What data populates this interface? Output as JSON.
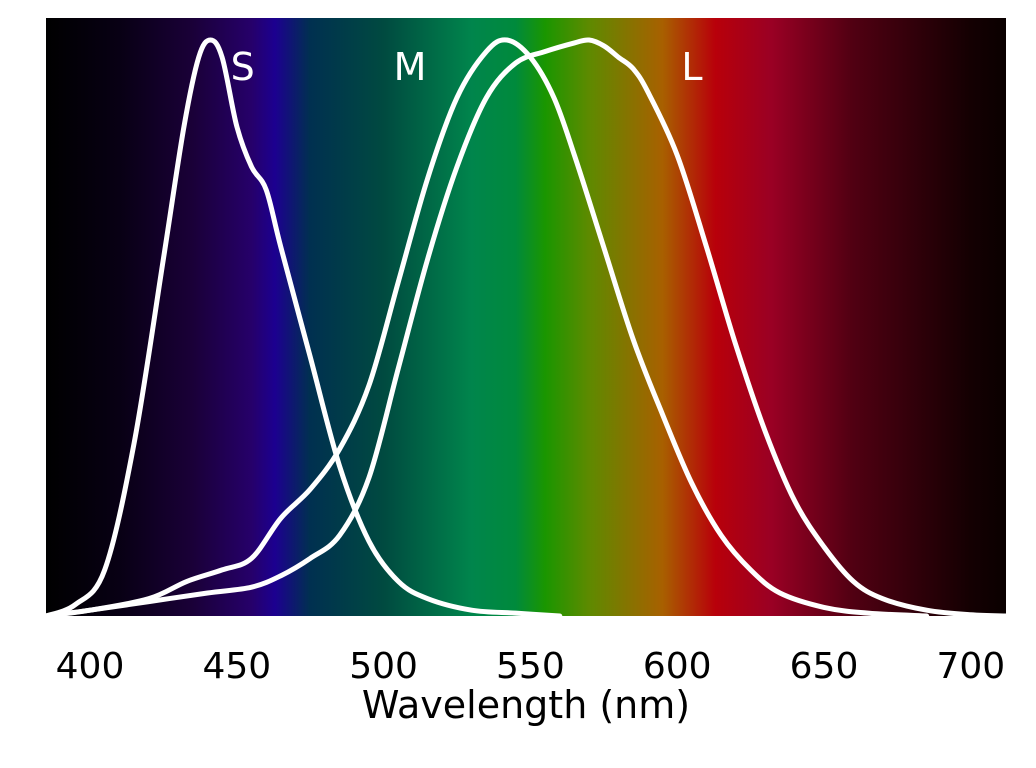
{
  "chart_data": {
    "type": "line",
    "title": "",
    "xlabel": "Wavelength (nm)",
    "ylabel": "",
    "xlim": [
      385,
      712
    ],
    "ylim": [
      0,
      1
    ],
    "x_ticks": [
      "400",
      "450",
      "500",
      "550",
      "600",
      "650",
      "700"
    ],
    "grid": false,
    "background_spectrum": [
      {
        "wl": 385,
        "color": "#000000"
      },
      {
        "wl": 410,
        "color": "#080014"
      },
      {
        "wl": 435,
        "color": "#1a0038"
      },
      {
        "wl": 455,
        "color": "#26006a"
      },
      {
        "wl": 463,
        "color": "#1c0090"
      },
      {
        "wl": 475,
        "color": "#003050"
      },
      {
        "wl": 500,
        "color": "#004a40"
      },
      {
        "wl": 530,
        "color": "#00854c"
      },
      {
        "wl": 545,
        "color": "#008a3c"
      },
      {
        "wl": 555,
        "color": "#1a9600"
      },
      {
        "wl": 570,
        "color": "#5e8a00"
      },
      {
        "wl": 595,
        "color": "#a86000"
      },
      {
        "wl": 613,
        "color": "#b8000a"
      },
      {
        "wl": 632,
        "color": "#9a0024"
      },
      {
        "wl": 660,
        "color": "#500012"
      },
      {
        "wl": 700,
        "color": "#140002"
      },
      {
        "wl": 712,
        "color": "#0a0000"
      }
    ],
    "series": [
      {
        "name": "S",
        "label_x": 452,
        "color": "#ffffff",
        "points": [
          [
            385,
            0
          ],
          [
            395,
            0.02
          ],
          [
            405,
            0.08
          ],
          [
            415,
            0.3
          ],
          [
            425,
            0.62
          ],
          [
            432,
            0.85
          ],
          [
            437,
            0.97
          ],
          [
            441,
            1.0
          ],
          [
            445,
            0.97
          ],
          [
            450,
            0.85
          ],
          [
            455,
            0.78
          ],
          [
            460,
            0.74
          ],
          [
            465,
            0.64
          ],
          [
            475,
            0.45
          ],
          [
            485,
            0.26
          ],
          [
            495,
            0.13
          ],
          [
            505,
            0.06
          ],
          [
            515,
            0.03
          ],
          [
            530,
            0.01
          ],
          [
            545,
            0.005
          ],
          [
            560,
            0
          ]
        ]
      },
      {
        "name": "M",
        "label_x": 509,
        "color": "#ffffff",
        "points": [
          [
            385,
            0
          ],
          [
            400,
            0.01
          ],
          [
            420,
            0.03
          ],
          [
            433,
            0.06
          ],
          [
            445,
            0.08
          ],
          [
            455,
            0.1
          ],
          [
            465,
            0.17
          ],
          [
            475,
            0.22
          ],
          [
            485,
            0.29
          ],
          [
            495,
            0.4
          ],
          [
            505,
            0.58
          ],
          [
            515,
            0.76
          ],
          [
            525,
            0.9
          ],
          [
            535,
            0.98
          ],
          [
            542,
            1.0
          ],
          [
            550,
            0.97
          ],
          [
            558,
            0.9
          ],
          [
            565,
            0.8
          ],
          [
            575,
            0.64
          ],
          [
            585,
            0.48
          ],
          [
            595,
            0.35
          ],
          [
            605,
            0.23
          ],
          [
            615,
            0.14
          ],
          [
            625,
            0.08
          ],
          [
            635,
            0.04
          ],
          [
            650,
            0.015
          ],
          [
            665,
            0.005
          ],
          [
            685,
            0
          ]
        ]
      },
      {
        "name": "L",
        "label_x": 605,
        "color": "#ffffff",
        "points": [
          [
            385,
            0
          ],
          [
            400,
            0.01
          ],
          [
            420,
            0.025
          ],
          [
            440,
            0.04
          ],
          [
            455,
            0.05
          ],
          [
            465,
            0.07
          ],
          [
            475,
            0.1
          ],
          [
            485,
            0.14
          ],
          [
            495,
            0.24
          ],
          [
            505,
            0.43
          ],
          [
            515,
            0.62
          ],
          [
            525,
            0.78
          ],
          [
            535,
            0.9
          ],
          [
            545,
            0.96
          ],
          [
            555,
            0.98
          ],
          [
            565,
            0.995
          ],
          [
            570,
            1.0
          ],
          [
            575,
            0.99
          ],
          [
            580,
            0.97
          ],
          [
            585,
            0.95
          ],
          [
            590,
            0.91
          ],
          [
            600,
            0.8
          ],
          [
            610,
            0.64
          ],
          [
            620,
            0.47
          ],
          [
            630,
            0.32
          ],
          [
            640,
            0.2
          ],
          [
            650,
            0.12
          ],
          [
            660,
            0.06
          ],
          [
            670,
            0.03
          ],
          [
            685,
            0.01
          ],
          [
            700,
            0.002
          ],
          [
            712,
            0
          ]
        ]
      }
    ]
  }
}
